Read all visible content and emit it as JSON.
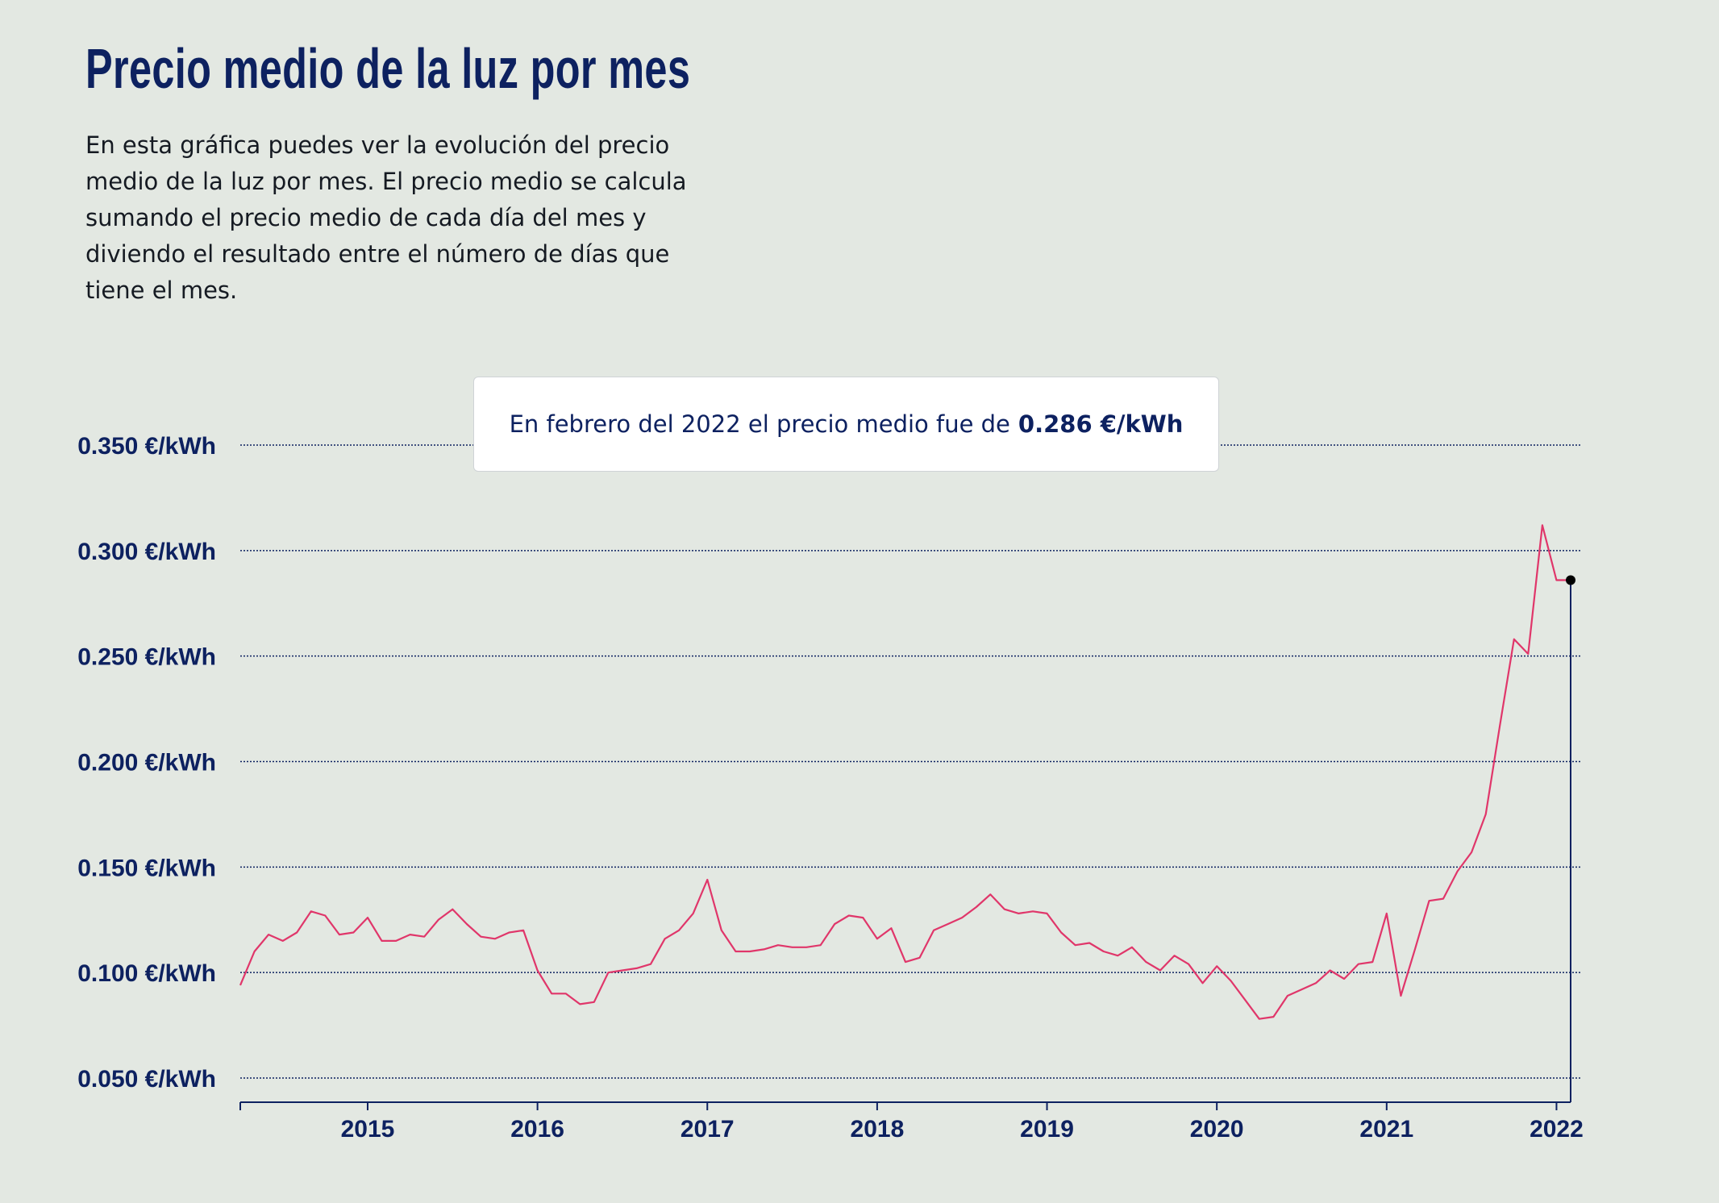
{
  "header": {
    "title": "Precio medio de la luz por mes",
    "description": "En esta gráfica puedes ver la evolución del precio medio de la luz por mes. El precio medio se calcula sumando el precio medio de cada día del mes y diviendo el resultado entre el número de días que tiene el mes."
  },
  "tooltip": {
    "text": "En febrero del 2022 el precio medio fue de",
    "value": "0.286 €/kWh"
  },
  "colors": {
    "line": "#e0366a",
    "axis": "#0d2160",
    "background": "#e3e8e2"
  },
  "chart_data": {
    "type": "line",
    "title": "Precio medio de la luz por mes",
    "xlabel": "",
    "ylabel": "",
    "x_start": "2014-04",
    "x_end": "2022-02",
    "xlim": [
      "2014-04",
      "2022-02"
    ],
    "ylim": [
      0.04,
      0.35
    ],
    "y_ticks": [
      0.35,
      0.3,
      0.25,
      0.2,
      0.15,
      0.1,
      0.05
    ],
    "y_tick_labels": [
      "0.350 €/kWh",
      "0.300 €/kWh",
      "0.250 €/kWh",
      "0.200 €/kWh",
      "0.150 €/kWh",
      "0.100 €/kWh",
      "0.050 €/kWh"
    ],
    "x_ticks": [
      "2015-01",
      "2016-01",
      "2017-01",
      "2018-01",
      "2019-01",
      "2020-01",
      "2021-01",
      "2022-01"
    ],
    "x_tick_labels": [
      "2015",
      "2016",
      "2017",
      "2018",
      "2019",
      "2020",
      "2021",
      "2022"
    ],
    "grid": "horizontal dotted",
    "highlight": {
      "x": "2022-02",
      "y": 0.286
    },
    "series": [
      {
        "values": [
          0.094,
          0.11,
          0.118,
          0.115,
          0.119,
          0.129,
          0.127,
          0.118,
          0.119,
          0.126,
          0.115,
          0.115,
          0.118,
          0.117,
          0.125,
          0.13,
          0.123,
          0.117,
          0.116,
          0.119,
          0.12,
          0.101,
          0.09,
          0.09,
          0.085,
          0.086,
          0.1,
          0.101,
          0.102,
          0.104,
          0.116,
          0.12,
          0.128,
          0.144,
          0.12,
          0.11,
          0.11,
          0.111,
          0.113,
          0.112,
          0.112,
          0.113,
          0.123,
          0.127,
          0.126,
          0.116,
          0.121,
          0.105,
          0.107,
          0.12,
          0.123,
          0.126,
          0.131,
          0.137,
          0.13,
          0.128,
          0.129,
          0.128,
          0.119,
          0.113,
          0.114,
          0.11,
          0.108,
          0.112,
          0.105,
          0.101,
          0.108,
          0.104,
          0.095,
          0.103,
          0.096,
          0.087,
          0.078,
          0.079,
          0.089,
          0.092,
          0.095,
          0.101,
          0.097,
          0.104,
          0.105,
          0.128,
          0.089,
          0.111,
          0.134,
          0.135,
          0.148,
          0.157,
          0.175,
          0.217,
          0.258,
          0.251,
          0.312,
          0.286,
          0.286
        ]
      }
    ]
  }
}
